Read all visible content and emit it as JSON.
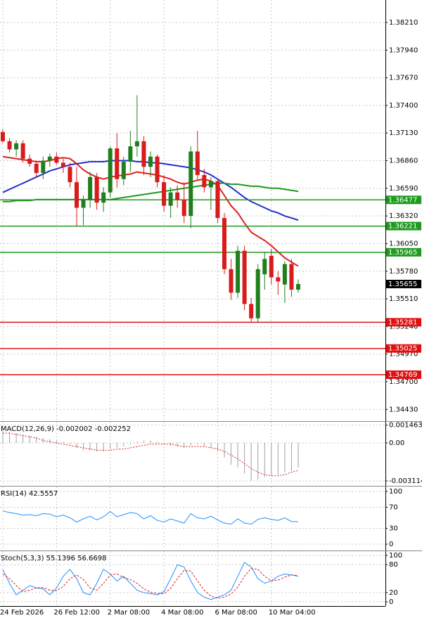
{
  "chart_data": [
    {
      "type": "candlestick",
      "categories": [
        "24 Feb 2026",
        null,
        null,
        null,
        null,
        null,
        null,
        null,
        "26 Feb 12:00",
        null,
        null,
        null,
        null,
        null,
        null,
        null,
        "2 Mar 08:00",
        null,
        null,
        null,
        null,
        null,
        null,
        null,
        "4 Mar 08:00",
        null,
        null,
        null,
        null,
        null,
        null,
        null,
        "6 Mar 08:00",
        null,
        null,
        null,
        null,
        null,
        null,
        null,
        "10 Mar 04:00",
        null,
        null,
        null,
        null
      ],
      "open": [
        1.3714,
        1.3705,
        1.3697,
        1.3703,
        1.3688,
        1.3683,
        1.3674,
        1.3686,
        1.369,
        1.3684,
        1.368,
        1.3665,
        1.364,
        1.3648,
        1.367,
        1.3645,
        1.3655,
        1.3698,
        1.3668,
        1.3685,
        1.37,
        1.3705,
        1.368,
        1.369,
        1.3665,
        1.3642,
        1.3655,
        1.3648,
        1.3632,
        1.3695,
        1.3672,
        1.366,
        1.3666,
        1.363,
        1.358,
        1.3557,
        1.3598,
        1.3546,
        1.3532,
        1.3575,
        1.3593,
        1.3572,
        1.3565,
        1.3585,
        1.356
      ],
      "high": [
        1.3717,
        1.3708,
        1.3706,
        1.3706,
        1.3692,
        1.3686,
        1.369,
        1.3693,
        1.3694,
        1.3688,
        1.3684,
        1.368,
        1.3652,
        1.3675,
        1.3674,
        1.366,
        1.37,
        1.3713,
        1.369,
        1.3715,
        1.375,
        1.371,
        1.3695,
        1.3692,
        1.3672,
        1.366,
        1.3662,
        1.3665,
        1.37,
        1.3715,
        1.3678,
        1.367,
        1.3668,
        1.3635,
        1.359,
        1.3603,
        1.3603,
        1.3552,
        1.3585,
        1.3597,
        1.36,
        1.3578,
        1.3588,
        1.359,
        1.357
      ],
      "low": [
        1.3703,
        1.3694,
        1.369,
        1.3684,
        1.368,
        1.367,
        1.3668,
        1.368,
        1.3682,
        1.3674,
        1.366,
        1.3622,
        1.3623,
        1.364,
        1.3638,
        1.3636,
        1.365,
        1.366,
        1.3662,
        1.3675,
        1.369,
        1.3672,
        1.367,
        1.366,
        1.3636,
        1.363,
        1.364,
        1.3625,
        1.362,
        1.3668,
        1.3655,
        1.3638,
        1.3625,
        1.3575,
        1.355,
        1.3552,
        1.354,
        1.3528,
        1.3528,
        1.356,
        1.3565,
        1.3555,
        1.3547,
        1.3553,
        1.3557
      ],
      "close": [
        1.3705,
        1.3697,
        1.3703,
        1.3688,
        1.3683,
        1.3674,
        1.3686,
        1.369,
        1.3684,
        1.368,
        1.3665,
        1.364,
        1.3648,
        1.367,
        1.3645,
        1.3655,
        1.3698,
        1.3668,
        1.3685,
        1.37,
        1.3705,
        1.368,
        1.369,
        1.3665,
        1.3642,
        1.3655,
        1.3648,
        1.3632,
        1.3695,
        1.3672,
        1.366,
        1.3666,
        1.363,
        1.358,
        1.3557,
        1.3598,
        1.3546,
        1.3532,
        1.358,
        1.359,
        1.3572,
        1.3568,
        1.3585,
        1.356,
        1.35655
      ],
      "up_color": "#1f7f1f",
      "down_color": "#d81b1b",
      "series": [
        {
          "color": "#e02020",
          "values": [
            1.369,
            1.3689,
            1.3688,
            1.3687,
            1.3686,
            1.3685,
            1.3685,
            1.3686,
            1.3688,
            1.3689,
            1.3688,
            1.3683,
            1.3677,
            1.3673,
            1.367,
            1.3668,
            1.367,
            1.3671,
            1.3672,
            1.3673,
            1.3675,
            1.3674,
            1.3673,
            1.3672,
            1.367,
            1.3668,
            1.3665,
            1.3663,
            1.3665,
            1.3667,
            1.3668,
            1.3666,
            1.3662,
            1.3652,
            1.3642,
            1.3635,
            1.3625,
            1.3616,
            1.3612,
            1.3608,
            1.3603,
            1.3597,
            1.3591,
            1.3587,
            1.3583
          ]
        },
        {
          "color": "#2030d0",
          "values": [
            1.3655,
            1.3658,
            1.3661,
            1.3664,
            1.3667,
            1.367,
            1.3673,
            1.3676,
            1.3678,
            1.368,
            1.3682,
            1.3683,
            1.3684,
            1.3685,
            1.3685,
            1.3685,
            1.3686,
            1.3686,
            1.3686,
            1.3686,
            1.3685,
            1.3685,
            1.3684,
            1.3684,
            1.3683,
            1.3682,
            1.3681,
            1.368,
            1.3679,
            1.3677,
            1.3675,
            1.3672,
            1.3668,
            1.3664,
            1.366,
            1.3655,
            1.365,
            1.3646,
            1.3643,
            1.364,
            1.3637,
            1.3635,
            1.3632,
            1.363,
            1.3628
          ]
        },
        {
          "color": "#1f9a1f",
          "values": [
            1.3646,
            1.3646,
            1.3647,
            1.3647,
            1.3647,
            1.3648,
            1.3648,
            1.3648,
            1.3648,
            1.3648,
            1.3648,
            1.3648,
            1.3648,
            1.3648,
            1.3648,
            1.3648,
            1.3648,
            1.3649,
            1.365,
            1.3651,
            1.3652,
            1.3653,
            1.3654,
            1.3655,
            1.3656,
            1.3657,
            1.3658,
            1.3659,
            1.366,
            1.3661,
            1.3662,
            1.3663,
            1.3664,
            1.3664,
            1.3663,
            1.3663,
            1.3662,
            1.3661,
            1.3661,
            1.366,
            1.3659,
            1.3659,
            1.3658,
            1.3657,
            1.3656
          ]
        }
      ],
      "levels": [
        {
          "value": 1.36477,
          "color": "#1f9a1f"
        },
        {
          "value": 1.36221,
          "color": "#1f9a1f"
        },
        {
          "value": 1.35965,
          "color": "#1f9a1f"
        },
        {
          "value": 1.35281,
          "color": "#e01010"
        },
        {
          "value": 1.35025,
          "color": "#e01010"
        },
        {
          "value": 1.34769,
          "color": "#e01010"
        }
      ],
      "ylim": [
        1.34322,
        1.3843
      ],
      "yticks": [
        {
          "value": 1.3821,
          "label": "1.38210"
        },
        {
          "value": 1.3794,
          "label": "1.37940"
        },
        {
          "value": 1.3767,
          "label": "1.37670"
        },
        {
          "value": 1.374,
          "label": "1.37400"
        },
        {
          "value": 1.3713,
          "label": "1.37130"
        },
        {
          "value": 1.3686,
          "label": "1.36860"
        },
        {
          "value": 1.3659,
          "label": "1.36590"
        },
        {
          "value": 1.3632,
          "label": "1.36320"
        },
        {
          "value": 1.3605,
          "label": "1.36050"
        },
        {
          "value": 1.3578,
          "label": "1.35780"
        },
        {
          "value": 1.3551,
          "label": "1.35510"
        },
        {
          "value": 1.3524,
          "label": "1.35240"
        },
        {
          "value": 1.3497,
          "label": "1.34970"
        },
        {
          "value": 1.347,
          "label": "1.34700"
        },
        {
          "value": 1.3443,
          "label": "1.34430"
        }
      ],
      "grid": true
    },
    {
      "type": "macd",
      "title": "MACD(12,26,9) -0.002002 -0.002252",
      "series": [
        {
          "kind": "bar",
          "color": "#a0a0a0",
          "values": [
            0.001,
            0.0009,
            0.0008,
            0.0007,
            0.0006,
            0.0005,
            0.0004,
            0.0003,
            0.0002,
            0.0001,
            -0.0001,
            -0.0004,
            -0.0006,
            -0.0006,
            -0.0007,
            -0.0007,
            -0.0005,
            -0.0004,
            -0.0003,
            -0.0001,
            0.0001,
            0.0002,
            0.0002,
            0.0001,
            -0.0001,
            -0.0002,
            -0.0003,
            -0.0004,
            -0.0002,
            -0.0001,
            -0.0003,
            -0.0004,
            -0.0007,
            -0.0012,
            -0.0018,
            -0.002,
            -0.0025,
            -0.0031,
            -0.003,
            -0.0028,
            -0.0027,
            -0.0026,
            -0.0024,
            -0.0023,
            -0.002002
          ]
        },
        {
          "kind": "line",
          "dash": true,
          "color": "#e02020",
          "values": [
            0.0008,
            0.0008,
            0.0007,
            0.0006,
            0.0005,
            0.0004,
            0.0002,
            0.0001,
            0.0,
            -0.0001,
            -0.0002,
            -0.0003,
            -0.0004,
            -0.0005,
            -0.0006,
            -0.0006,
            -0.0006,
            -0.0005,
            -0.0005,
            -0.0004,
            -0.0003,
            -0.0002,
            -0.0001,
            -0.0001,
            -0.0001,
            -0.0001,
            -0.0002,
            -0.0003,
            -0.0003,
            -0.0003,
            -0.0003,
            -0.0004,
            -0.0005,
            -0.0007,
            -0.001,
            -0.0013,
            -0.0017,
            -0.0021,
            -0.0024,
            -0.0026,
            -0.0027,
            -0.0027,
            -0.0026,
            -0.0024,
            -0.002252
          ]
        }
      ],
      "ylim": [
        -0.00346,
        0.00173
      ],
      "yticks": [
        0.001463,
        {
          "value": 0,
          "label": "0.00"
        },
        -0.003114
      ]
    },
    {
      "type": "line",
      "title": "RSI(14) 42.5557",
      "series": [
        {
          "color": "#1e90ff",
          "values": [
            63,
            60,
            58,
            55,
            56,
            54,
            58,
            57,
            52,
            55,
            50,
            42,
            48,
            53,
            46,
            52,
            62,
            52,
            56,
            60,
            58,
            48,
            54,
            45,
            42,
            48,
            44,
            40,
            58,
            50,
            48,
            53,
            46,
            40,
            38,
            48,
            40,
            38,
            47,
            50,
            47,
            45,
            50,
            43,
            42.5557
          ]
        }
      ],
      "ylim": [
        -10.7,
        109.3
      ],
      "yticks": [
        100,
        70,
        30,
        0
      ]
    },
    {
      "type": "line",
      "title": "Stoch(5,3,3) 55.1396 56.6698",
      "series": [
        {
          "color": "#1e90ff",
          "values": [
            70,
            40,
            15,
            25,
            35,
            30,
            28,
            15,
            30,
            55,
            70,
            50,
            20,
            15,
            40,
            70,
            60,
            45,
            55,
            40,
            25,
            20,
            18,
            15,
            22,
            50,
            80,
            75,
            45,
            20,
            10,
            5,
            10,
            15,
            25,
            55,
            85,
            75,
            50,
            40,
            45,
            55,
            60,
            58,
            55.1396
          ]
        },
        {
          "color": "#e02020",
          "dash": true,
          "values": [
            60,
            50,
            35,
            22,
            25,
            30,
            31,
            25,
            24,
            33,
            50,
            58,
            48,
            30,
            25,
            40,
            58,
            60,
            52,
            48,
            40,
            28,
            21,
            18,
            18,
            29,
            50,
            68,
            66,
            45,
            25,
            12,
            8,
            10,
            17,
            32,
            55,
            72,
            70,
            55,
            45,
            47,
            53,
            58,
            56.6698
          ]
        }
      ],
      "ylim": [
        -9,
        109
      ],
      "yticks": [
        100,
        80,
        20,
        0
      ]
    }
  ]
}
